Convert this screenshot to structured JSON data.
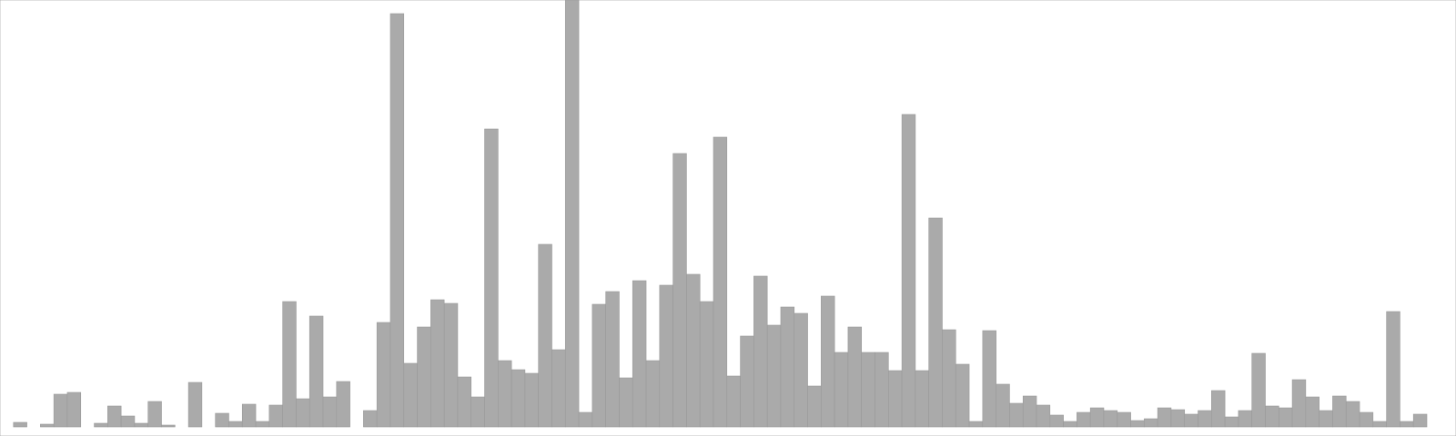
{
  "chart_data": {
    "type": "bar",
    "categories": [
      null,
      null,
      null,
      null,
      null,
      null,
      null,
      null,
      null,
      null,
      null,
      null,
      null,
      null,
      null,
      null,
      null,
      null,
      null,
      null,
      null,
      null,
      null,
      null,
      null,
      null,
      null,
      null,
      null,
      null,
      null,
      null,
      null,
      null,
      null,
      null,
      null,
      null,
      null,
      null,
      null,
      null,
      null,
      null,
      null,
      null,
      null,
      null,
      null,
      null,
      null,
      null,
      null,
      null,
      null,
      null,
      null,
      null,
      null,
      null,
      null,
      null,
      null,
      null,
      null,
      null,
      null,
      null,
      null,
      null,
      null,
      null,
      null,
      null,
      null,
      null,
      null,
      null,
      null,
      null,
      null,
      null,
      null,
      null,
      null,
      null,
      null,
      null,
      null,
      null,
      null,
      null,
      null,
      null,
      null,
      null,
      null,
      null,
      null,
      null,
      null,
      null,
      null,
      null,
      null,
      null
    ],
    "values": [
      0,
      5,
      0,
      3,
      36,
      38,
      0,
      4,
      23,
      12,
      4,
      28,
      2,
      0,
      49,
      0,
      15,
      6,
      25,
      6,
      24,
      138,
      31,
      122,
      33,
      50,
      0,
      18,
      115,
      455,
      70,
      110,
      140,
      136,
      55,
      33,
      328,
      73,
      63,
      59,
      201,
      85,
      470,
      16,
      135,
      149,
      54,
      161,
      73,
      156,
      301,
      168,
      138,
      319,
      56,
      100,
      166,
      112,
      132,
      125,
      45,
      144,
      82,
      110,
      82,
      82,
      62,
      344,
      62,
      230,
      107,
      69,
      6,
      106,
      47,
      26,
      34,
      24,
      13,
      6,
      16,
      21,
      18,
      16,
      7,
      9,
      21,
      19,
      14,
      18,
      40,
      11,
      18,
      81,
      23,
      21,
      52,
      33,
      18,
      34,
      28,
      16,
      6,
      127,
      6,
      14
    ],
    "color": "#aaaaaa",
    "ylim": [
      0,
      470
    ]
  }
}
